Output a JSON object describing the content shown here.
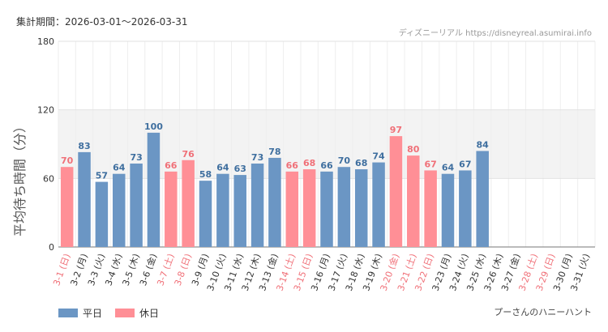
{
  "header": {
    "period_label": "集計期間：",
    "period_start": "2026-03-01",
    "period_sep": "～",
    "period_end": "2026-03-31",
    "source": "ディズニーリアル https://disneyreal.asumirai.info"
  },
  "attraction": "プーさんのハニーハント",
  "legend": {
    "weekday": "平日",
    "holiday": "休日"
  },
  "colors": {
    "weekday": "#6b96c4",
    "holiday": "#ff8f96",
    "weekday_text": "#3f6f9f",
    "holiday_text": "#f07078",
    "band": "#f3f3f3"
  },
  "chart_data": {
    "type": "bar",
    "ylabel": "平均待ち時間（分）",
    "ylim": [
      0,
      180
    ],
    "yticks": [
      0,
      60,
      120,
      180
    ],
    "highlight_band": [
      60,
      120
    ],
    "categories": [
      "3-1 (日)",
      "3-2 (月)",
      "3-3 (火)",
      "3-4 (水)",
      "3-5 (木)",
      "3-6 (金)",
      "3-7 (土)",
      "3-8 (日)",
      "3-9 (月)",
      "3-10 (火)",
      "3-11 (水)",
      "3-12 (木)",
      "3-13 (金)",
      "3-14 (土)",
      "3-15 (日)",
      "3-16 (月)",
      "3-17 (火)",
      "3-18 (水)",
      "3-19 (木)",
      "3-20 (金)",
      "3-21 (土)",
      "3-22 (日)",
      "3-23 (月)",
      "3-24 (火)",
      "3-25 (水)",
      "3-26 (木)",
      "3-27 (金)",
      "3-28 (土)",
      "3-29 (日)",
      "3-30 (月)",
      "3-31 (火)"
    ],
    "day_type": [
      "holiday",
      "weekday",
      "weekday",
      "weekday",
      "weekday",
      "weekday",
      "holiday",
      "holiday",
      "weekday",
      "weekday",
      "weekday",
      "weekday",
      "weekday",
      "holiday",
      "holiday",
      "weekday",
      "weekday",
      "weekday",
      "weekday",
      "holiday",
      "holiday",
      "holiday",
      "weekday",
      "weekday",
      "weekday",
      "weekday",
      "weekday",
      "holiday",
      "holiday",
      "weekday",
      "weekday"
    ],
    "values": [
      70,
      83,
      57,
      64,
      73,
      100,
      66,
      76,
      58,
      64,
      63,
      73,
      78,
      66,
      68,
      66,
      70,
      68,
      74,
      97,
      80,
      67,
      64,
      67,
      84,
      null,
      null,
      null,
      null,
      null,
      null
    ]
  }
}
